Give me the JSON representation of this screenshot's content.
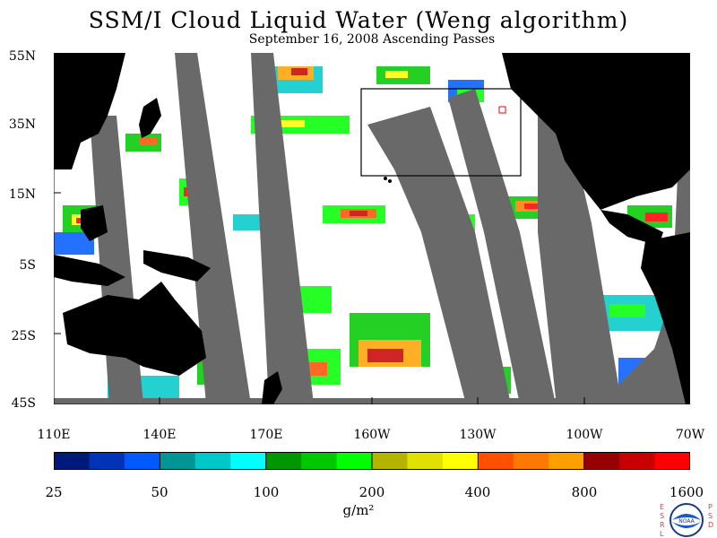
{
  "title": "SSM/I Cloud Liquid Water (Weng algorithm)",
  "subtitle": "September 16, 2008  Ascending Passes",
  "lat_labels": [
    "55N",
    "35N",
    "15N",
    "5S",
    "25S",
    "45S"
  ],
  "lon_labels": [
    "110E",
    "140E",
    "170E",
    "160W",
    "130W",
    "100W",
    "70W"
  ],
  "colorbar": {
    "colors": [
      "#001a7a",
      "#0033b8",
      "#0059ff",
      "#009696",
      "#00c8c8",
      "#00ffff",
      "#009600",
      "#00c800",
      "#00ff00",
      "#b4b400",
      "#e1e100",
      "#ffff00",
      "#ff5000",
      "#ff7800",
      "#ffa000",
      "#960000",
      "#c80000",
      "#ff0000"
    ],
    "labels": [
      "25",
      "50",
      "100",
      "200",
      "400",
      "800",
      "1600"
    ]
  },
  "units": "g/m²",
  "logo": {
    "name": "noaa-logo",
    "left_letters": "ESRL",
    "right_letters": "PSD",
    "center": "NOAA"
  }
}
